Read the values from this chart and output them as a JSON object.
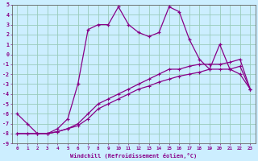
{
  "xlabel": "Windchill (Refroidissement éolien,°C)",
  "background_color": "#cceeff",
  "grid_color": "#99ccbb",
  "line_color": "#880088",
  "xlim": [
    -0.5,
    23.5
  ],
  "ylim": [
    -9,
    5
  ],
  "xticks": [
    0,
    1,
    2,
    3,
    4,
    5,
    6,
    7,
    8,
    9,
    10,
    11,
    12,
    13,
    14,
    15,
    16,
    17,
    18,
    19,
    20,
    21,
    22,
    23
  ],
  "yticks": [
    5,
    4,
    3,
    2,
    1,
    0,
    -1,
    -2,
    -3,
    -4,
    -5,
    -6,
    -7,
    -8,
    -9
  ],
  "hours": [
    0,
    1,
    2,
    3,
    4,
    5,
    6,
    7,
    8,
    9,
    10,
    11,
    12,
    13,
    14,
    15,
    16,
    17,
    18,
    19,
    20,
    21,
    22,
    23
  ],
  "main_temp": [
    -6,
    -7,
    -8,
    -8,
    -7.5,
    -6.5,
    -3,
    2.5,
    3.0,
    3.0,
    4.8,
    3.0,
    2.2,
    1.8,
    2.2,
    4.8,
    4.3,
    1.5,
    -0.5,
    -1.5,
    1.0,
    -1.5,
    -2.0,
    -3.5
  ],
  "line2": [
    -8.0,
    -8.0,
    -8.0,
    -8.0,
    -7.8,
    -7.5,
    -7.0,
    -6.0,
    -5.0,
    -4.5,
    -4.0,
    -3.5,
    -3.0,
    -2.5,
    -2.0,
    -1.5,
    -1.5,
    -1.2,
    -1.0,
    -1.0,
    -1.0,
    -0.8,
    -0.5,
    -3.5
  ],
  "line3": [
    -8.0,
    -8.0,
    -8.0,
    -8.0,
    -7.8,
    -7.5,
    -7.2,
    -6.5,
    -5.5,
    -5.0,
    -4.5,
    -4.0,
    -3.5,
    -3.2,
    -2.8,
    -2.5,
    -2.2,
    -2.0,
    -1.8,
    -1.5,
    -1.5,
    -1.5,
    -1.2,
    -3.5
  ]
}
